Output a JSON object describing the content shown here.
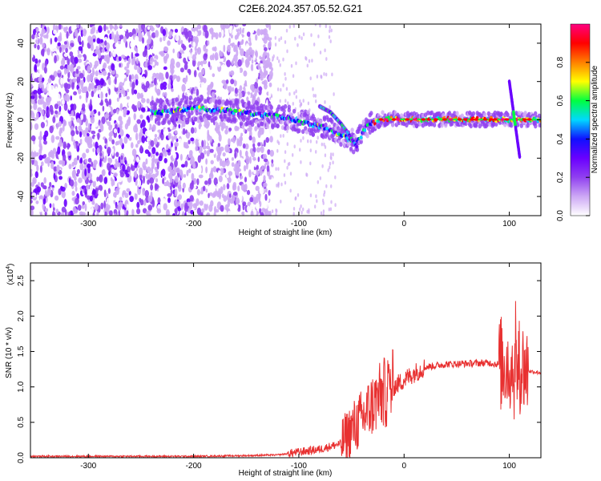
{
  "figure_title": "C2E6.2024.357.05.52.G21",
  "chart_data": [
    {
      "type": "heatmap",
      "xlabel": "Height of straight line (km)",
      "ylabel": "Frequency (Hz)",
      "xlim": [
        -355,
        130
      ],
      "ylim": [
        -50,
        50
      ],
      "x_ticks": [
        -300,
        -200,
        -100,
        0,
        100
      ],
      "y_ticks": [
        -40,
        -20,
        0,
        20,
        40
      ],
      "colorbar": {
        "label": "Normalized spectral amplitude",
        "range": [
          0.0,
          1.0
        ],
        "ticks": [
          "0.0",
          "0.2",
          "0.4",
          "0.6",
          "0.8"
        ],
        "tick_values": [
          0.0,
          0.2,
          0.4,
          0.6,
          0.8
        ],
        "colormap": [
          "#ffffff",
          "#cda8f5",
          "#9040f0",
          "#6a00ff",
          "#1010ff",
          "#00d8ff",
          "#00ff40",
          "#ffff00",
          "#ff8000",
          "#ff0000",
          "#ff0080"
        ]
      },
      "features": {
        "noise_region_x": [
          -355,
          -125
        ],
        "main_trace": [
          [
            -230,
            4
          ],
          [
            -200,
            6
          ],
          [
            -170,
            5
          ],
          [
            -140,
            3
          ],
          [
            -110,
            1
          ],
          [
            -90,
            -2
          ],
          [
            -75,
            -4
          ],
          [
            -60,
            -8
          ],
          [
            -45,
            -12
          ],
          [
            -35,
            -3
          ],
          [
            -20,
            0.5
          ],
          [
            0,
            0.3
          ],
          [
            50,
            0.2
          ],
          [
            100,
            0.1
          ],
          [
            130,
            0.1
          ]
        ],
        "branch_trace": [
          [
            -80,
            7
          ],
          [
            -70,
            4
          ],
          [
            -60,
            -2
          ],
          [
            -52,
            -8
          ],
          [
            -45,
            -14
          ]
        ],
        "spike": [
          [
            100,
            20
          ],
          [
            105,
            0
          ],
          [
            110,
            -20
          ]
        ]
      }
    },
    {
      "type": "line",
      "xlabel": "Height of straight line (km)",
      "ylabel": "SNR (10 * v/v)",
      "y_multiplier": "(x10",
      "y_multiplier_exp": "4",
      "xlim": [
        -355,
        130
      ],
      "ylim": [
        0,
        2.75
      ],
      "x_ticks": [
        -300,
        -200,
        -100,
        0,
        100
      ],
      "y_ticks": [
        "0.0",
        "0.5",
        "1.0",
        "1.5",
        "2.0",
        "2.5"
      ],
      "y_tick_values": [
        0.0,
        0.5,
        1.0,
        1.5,
        2.0,
        2.5
      ],
      "series": [
        {
          "color": "#e83030",
          "x": [
            -355,
            -300,
            -250,
            -200,
            -150,
            -120,
            -100,
            -80,
            -60,
            -50,
            -40,
            -30,
            -20,
            -15,
            -10,
            0,
            10,
            20,
            30,
            40,
            60,
            80,
            90,
            100,
            105,
            110,
            115,
            120,
            130
          ],
          "y": [
            0.02,
            0.02,
            0.02,
            0.02,
            0.03,
            0.04,
            0.08,
            0.12,
            0.2,
            0.4,
            0.55,
            0.75,
            0.9,
            0.95,
            1.0,
            1.1,
            1.2,
            1.28,
            1.3,
            1.32,
            1.33,
            1.34,
            1.32,
            1.35,
            1.2,
            1.3,
            1.25,
            1.22,
            1.2
          ]
        }
      ]
    }
  ]
}
